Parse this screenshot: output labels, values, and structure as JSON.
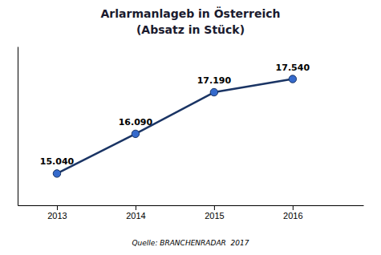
{
  "chart_data": {
    "type": "line",
    "title": "Arlarmanlageb in Österreich",
    "subtitle": "(Absatz in Stück)",
    "source": "Quelle: BRANCHENRADAR  2017",
    "x": [
      2013,
      2014,
      2015,
      2016
    ],
    "values": [
      15040,
      16090,
      17190,
      17540
    ],
    "value_labels": [
      "15.040",
      "16.090",
      "17.190",
      "17.540"
    ],
    "data_labels": true,
    "color": "#1a3464",
    "marker": "circle",
    "xlim": [
      2012.5,
      2016.9
    ],
    "xticks": [
      2013,
      2014,
      2015,
      2016
    ],
    "ylim": [
      14200,
      18400
    ],
    "tick_labels": "x",
    "grid": false
  }
}
